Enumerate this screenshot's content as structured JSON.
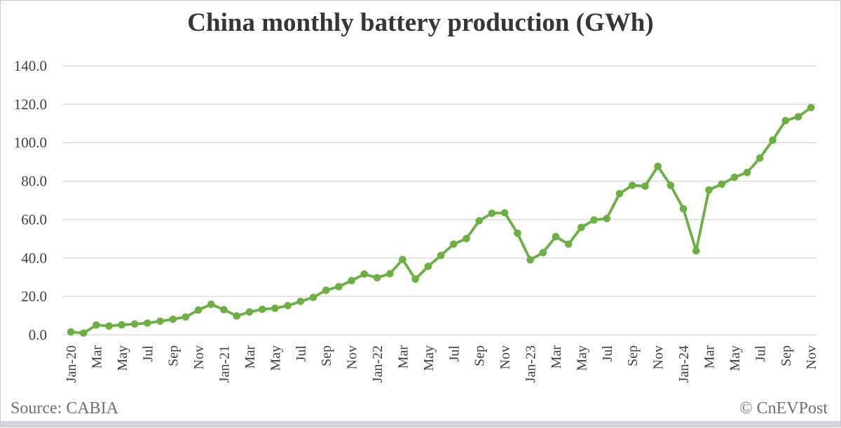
{
  "page": {
    "title": "China monthly battery production (GWh)",
    "source": "Source: CABIA",
    "watermark": "© CnEVPost"
  },
  "chart_data": {
    "type": "line",
    "title": "China monthly battery production (GWh)",
    "unit": "GWh",
    "legend": "none",
    "grid": true,
    "x": [
      "Jan-20",
      "Feb-20",
      "Mar-20",
      "Apr-20",
      "May-20",
      "Jun-20",
      "Jul-20",
      "Aug-20",
      "Sep-20",
      "Oct-20",
      "Nov-20",
      "Dec-20",
      "Jan-21",
      "Feb-21",
      "Mar-21",
      "Apr-21",
      "May-21",
      "Jun-21",
      "Jul-21",
      "Aug-21",
      "Sep-21",
      "Oct-21",
      "Nov-21",
      "Dec-21",
      "Jan-22",
      "Feb-22",
      "Mar-22",
      "Apr-22",
      "May-22",
      "Jun-22",
      "Jul-22",
      "Aug-22",
      "Sep-22",
      "Oct-22",
      "Nov-22",
      "Dec-22",
      "Jan-23",
      "Feb-23",
      "Mar-23",
      "Apr-23",
      "May-23",
      "Jun-23",
      "Jul-23",
      "Aug-23",
      "Sep-23",
      "Oct-23",
      "Nov-23",
      "Dec-23",
      "Jan-24",
      "Feb-24",
      "Mar-24",
      "Apr-24",
      "May-24",
      "Jun-24",
      "Jul-24",
      "Aug-24",
      "Sep-24",
      "Oct-24",
      "Nov-24"
    ],
    "values": [
      1.5,
      0.9,
      5.1,
      4.6,
      5.2,
      5.6,
      6.1,
      7.1,
      8.1,
      9.3,
      12.9,
      15.9,
      13.1,
      9.8,
      11.9,
      13.3,
      13.8,
      15.2,
      17.4,
      19.5,
      23.2,
      25.1,
      28.2,
      31.6,
      29.7,
      31.8,
      39.2,
      29.0,
      35.6,
      41.3,
      47.2,
      50.1,
      59.3,
      63.3,
      63.5,
      52.9,
      39.0,
      42.8,
      51.1,
      47.2,
      55.9,
      59.8,
      60.5,
      73.5,
      77.8,
      77.4,
      87.7,
      77.8,
      65.6,
      43.7,
      75.4,
      78.4,
      82.0,
      84.5,
      92.0,
      101.3,
      111.5,
      113.5,
      118.3
    ],
    "xtick_labels": [
      "Jan-20",
      "Mar",
      "May",
      "Jul",
      "Sep",
      "Nov",
      "Jan-21",
      "Mar",
      "May",
      "Jul",
      "Sep",
      "Nov",
      "Jan-22",
      "Mar",
      "May",
      "Jul",
      "Sep",
      "Nov",
      "Jan-23",
      "Mar",
      "May",
      "Jul",
      "Sep",
      "Nov",
      "Jan-24",
      "Mar",
      "May",
      "Jul",
      "Sep",
      "Nov"
    ],
    "xtick_every": 2,
    "ylim": [
      0,
      140
    ],
    "ytick_step": 20,
    "ytick_decimals": 1,
    "line_color": "#6cb043",
    "grid_color": "#d7d7d7",
    "axis_text_color": "#3f3f3f"
  }
}
